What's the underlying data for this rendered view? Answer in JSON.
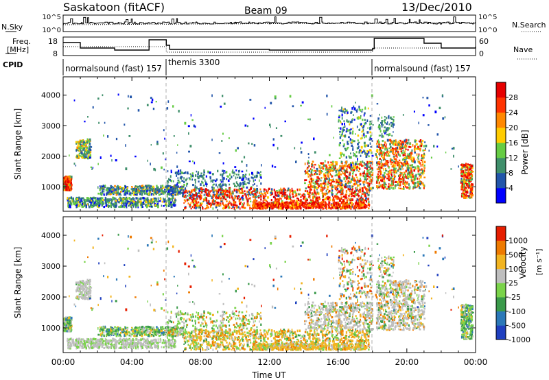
{
  "header": {
    "station": "Saskatoon (fitACF)",
    "beam": "Beam 09",
    "date": "13/Dec/2010"
  },
  "chart_data": [
    {
      "type": "line",
      "panel": "noise",
      "left_label": "N.Sky",
      "right_label": "N.Search",
      "left_ticks": [
        "10^5",
        "10^0"
      ],
      "right_ticks": [
        "10^5",
        "10^0"
      ]
    },
    {
      "type": "line",
      "panel": "frequency",
      "left_label_lines": [
        "Freq.",
        "[MHz]"
      ],
      "right_label": "Nave",
      "left_ticks": [
        "18",
        "8"
      ],
      "right_ticks": [
        "60",
        "0"
      ]
    },
    {
      "type": "table",
      "panel": "cpid",
      "label": "CPID",
      "segments": [
        {
          "start_h": 0.0,
          "end_h": 6.0,
          "text": "normalsound (fast) 157"
        },
        {
          "start_h": 6.0,
          "end_h": 18.0,
          "text": "themis 3300"
        },
        {
          "start_h": 18.0,
          "end_h": 24.0,
          "text": "normalsound (fast) 157"
        }
      ]
    },
    {
      "type": "heatmap",
      "panel": "power",
      "ylabel": "Slant Range [km]",
      "yticks": [
        "1000",
        "2000",
        "3000",
        "4000"
      ],
      "ylim": [
        200,
        4600
      ],
      "colorbar_label": "Power [dB]",
      "colorbar_ticks": [
        "4",
        "8",
        "12",
        "16",
        "20",
        "24",
        "28"
      ],
      "colors": [
        "#0000ff",
        "#2255aa",
        "#3f8f6b",
        "#66cc44",
        "#ffcc00",
        "#ff8800",
        "#ff3300",
        "#e60000"
      ]
    },
    {
      "type": "heatmap",
      "panel": "velocity",
      "ylabel": "Slant Range [km]",
      "yticks": [
        "1000",
        "2000",
        "3000",
        "4000"
      ],
      "ylim": [
        200,
        4600
      ],
      "colorbar_label": "Velocity",
      "colorbar_unit": "[m s⁻¹]",
      "colorbar_ticks": [
        "1000",
        "500",
        "100",
        "25",
        "-25",
        "-100",
        "-500",
        "-1000"
      ],
      "colors": [
        "#1f3fbf",
        "#2b78b8",
        "#3a9a4a",
        "#7ad34a",
        "#bebebe",
        "#f2b420",
        "#ee7a00",
        "#e61e00"
      ]
    }
  ],
  "xaxis": {
    "label": "Time UT",
    "ticks": [
      "00:00",
      "04:00",
      "08:00",
      "12:00",
      "16:00",
      "20:00",
      "00:00"
    ],
    "tick_hours": [
      0,
      4,
      8,
      12,
      16,
      20,
      24
    ]
  }
}
